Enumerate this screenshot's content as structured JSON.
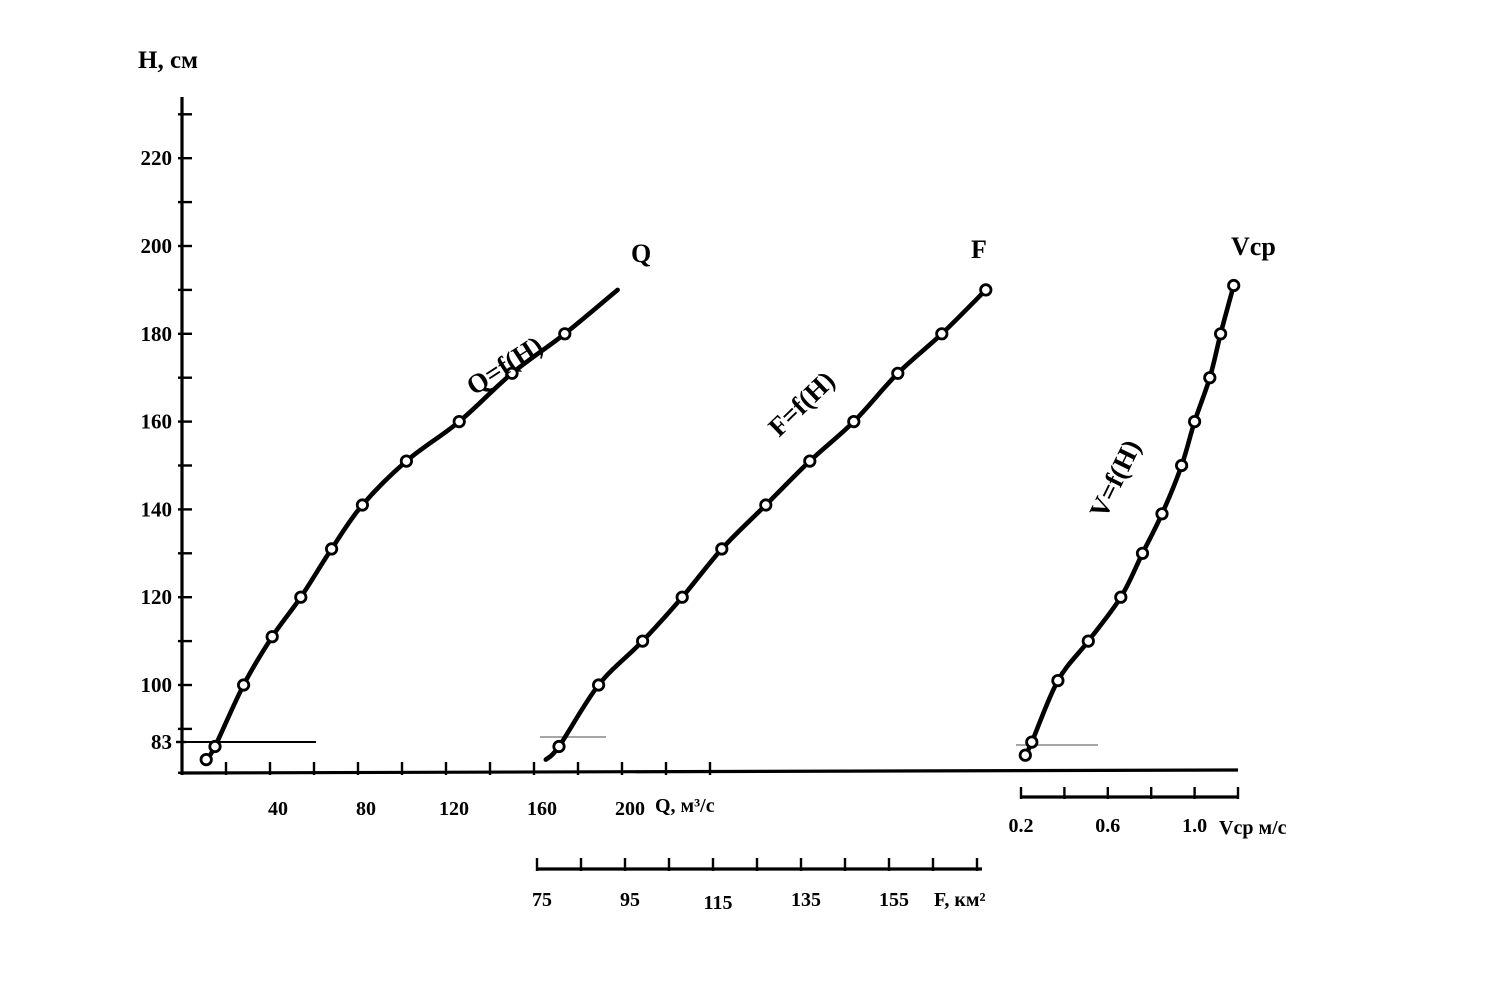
{
  "chart_data": {
    "type": "line",
    "y_axis": {
      "label": "H, см",
      "range": [
        75,
        230
      ],
      "ticks": [
        "220",
        "200",
        "180",
        "160",
        "140",
        "120",
        "100",
        "83"
      ],
      "tick_values": [
        220,
        200,
        180,
        160,
        140,
        120,
        100,
        83
      ],
      "grid": false
    },
    "x_axes": [
      {
        "id": "Q",
        "label": "Q, м³/с",
        "ticks": [
          "40",
          "80",
          "120",
          "160",
          "200"
        ],
        "tick_values": [
          40,
          80,
          120,
          160,
          200
        ]
      },
      {
        "id": "F",
        "label": "F, км²",
        "ticks": [
          "75",
          "95",
          "115",
          "135",
          "155"
        ],
        "tick_values": [
          75,
          95,
          115,
          135,
          155
        ]
      },
      {
        "id": "V",
        "label": "Vср м/с",
        "ticks": [
          "0.2",
          "0.6",
          "1.0"
        ],
        "tick_values": [
          0.2,
          0.6,
          1.0
        ]
      }
    ],
    "series": [
      {
        "id": "Q",
        "name": "Q",
        "equation": "Q=f(H)",
        "points": [
          [
            11,
            83
          ],
          [
            15,
            86
          ],
          [
            28,
            100
          ],
          [
            41,
            111
          ],
          [
            54,
            120
          ],
          [
            68,
            131
          ],
          [
            82,
            141
          ],
          [
            102,
            151
          ],
          [
            126,
            160
          ],
          [
            150,
            171
          ],
          [
            174,
            180
          ]
        ],
        "curve_end": [
          198,
          190
        ]
      },
      {
        "id": "F",
        "name": "F",
        "equation": "F=f(H)",
        "points": [
          [
            80,
            86
          ],
          [
            89,
            100
          ],
          [
            99,
            110
          ],
          [
            108,
            120
          ],
          [
            117,
            131
          ],
          [
            127,
            141
          ],
          [
            137,
            151
          ],
          [
            147,
            160
          ],
          [
            157,
            171
          ],
          [
            167,
            180
          ],
          [
            177,
            190
          ]
        ],
        "curve_start": [
          77,
          83
        ]
      },
      {
        "id": "V",
        "name": "Vср",
        "equation": "V=f(H)",
        "points": [
          [
            0.22,
            84
          ],
          [
            0.25,
            87
          ],
          [
            0.37,
            101
          ],
          [
            0.51,
            110
          ],
          [
            0.66,
            120
          ],
          [
            0.76,
            130
          ],
          [
            0.85,
            139
          ],
          [
            0.94,
            150
          ],
          [
            1.0,
            160
          ],
          [
            1.07,
            170
          ],
          [
            1.12,
            180
          ],
          [
            1.18,
            191
          ]
        ]
      }
    ]
  }
}
